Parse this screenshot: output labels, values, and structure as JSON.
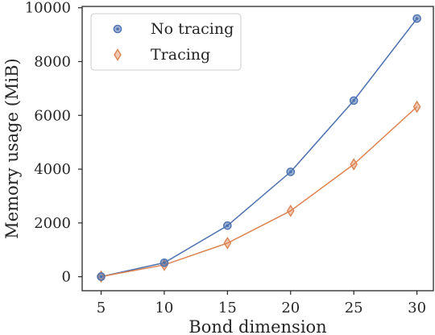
{
  "chart_data": {
    "type": "line",
    "xlabel": "Bond dimension",
    "ylabel": "Memory usage (MiB)",
    "x": [
      5,
      10,
      15,
      20,
      25,
      30
    ],
    "xlim": [
      3.5,
      31.3
    ],
    "ylim": [
      -520,
      10050
    ],
    "xticks": [
      5,
      10,
      15,
      20,
      25,
      30
    ],
    "yticks": [
      0,
      2000,
      4000,
      6000,
      8000,
      10000
    ],
    "grid": false,
    "legend_position": "top-left",
    "series": [
      {
        "name": "No tracing",
        "values": [
          5,
          520,
          1900,
          3900,
          6550,
          9600
        ],
        "color": "#4c72b0",
        "marker": "circle"
      },
      {
        "name": "Tracing",
        "values": [
          5,
          440,
          1250,
          2450,
          4180,
          6320
        ],
        "color": "#dd8452",
        "marker": "diamond"
      }
    ]
  }
}
